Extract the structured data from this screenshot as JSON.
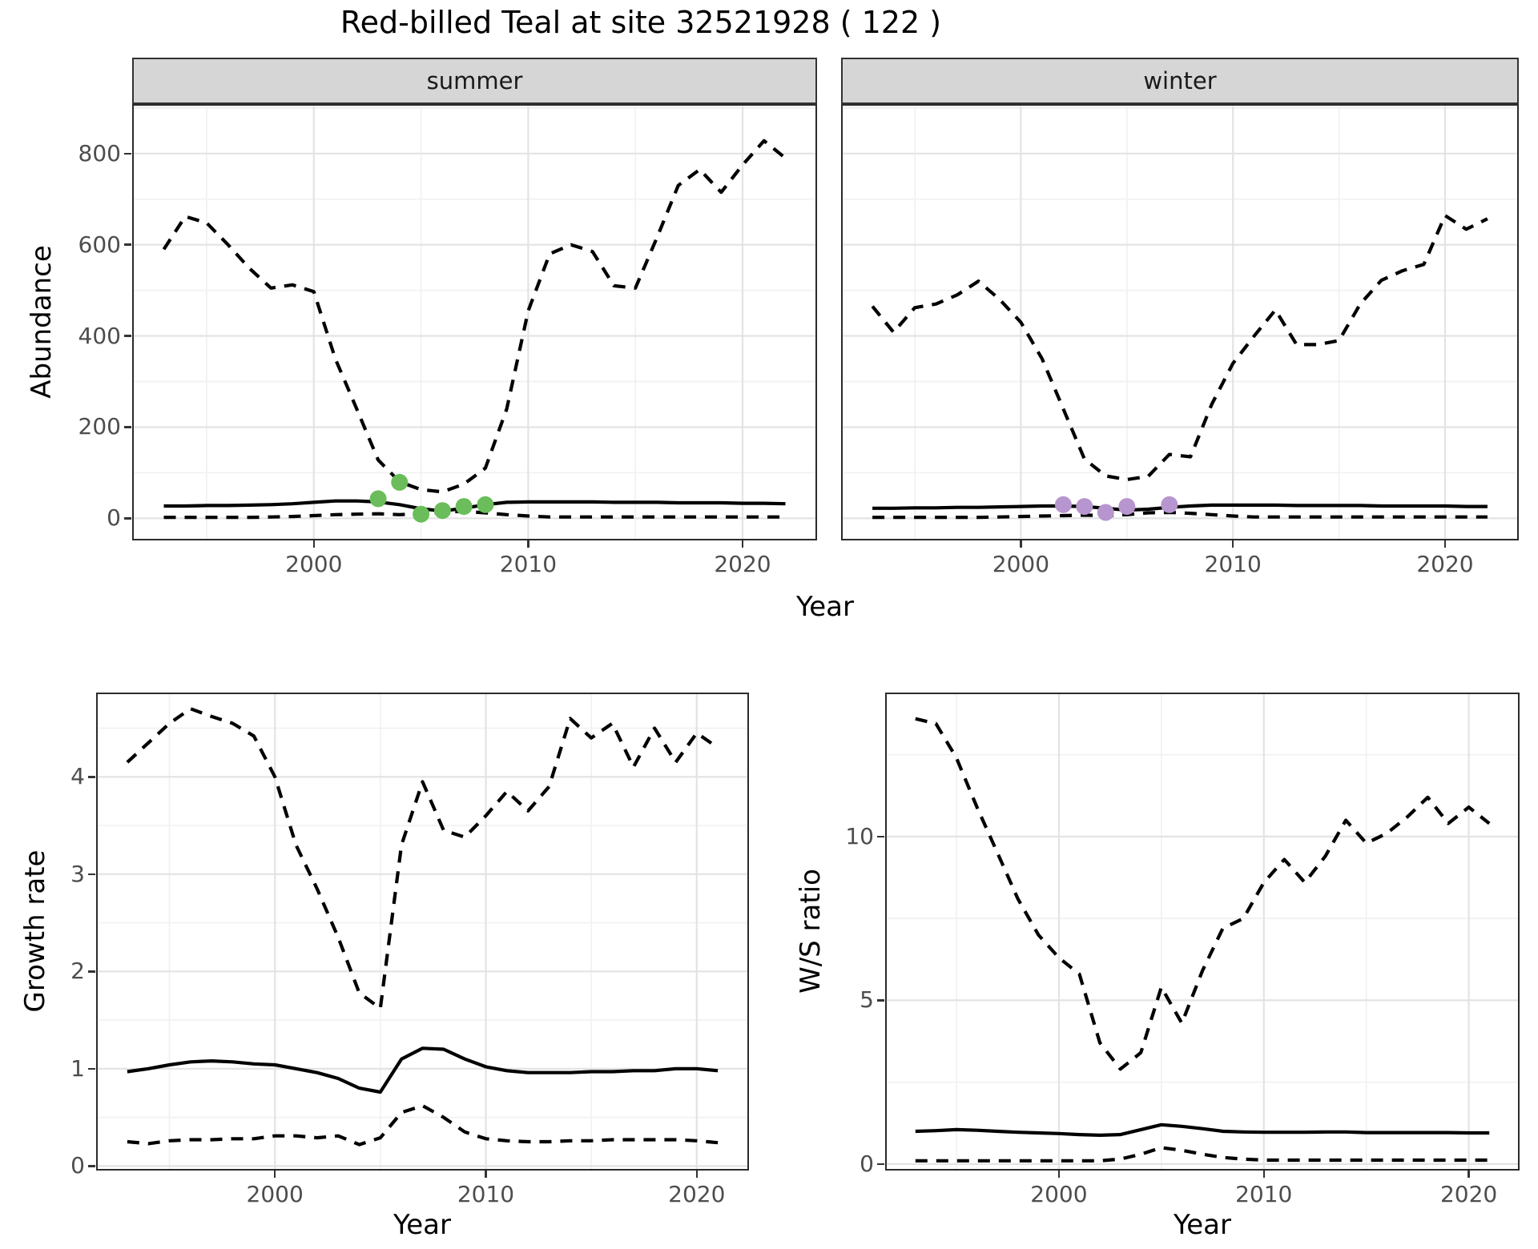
{
  "title": "Red-billed Teal at site 32521928 ( 122 )",
  "labels": {
    "year": "Year"
  },
  "colors": {
    "summer_point": "#6abd5a",
    "winter_point": "#b795cf",
    "line": "#000000",
    "grid_major": "#e3e3e3",
    "grid_minor": "#f1f1f1",
    "panel_border": "#2b2b2b",
    "strip_bg": "#d6d6d6",
    "axis_text": "#4d4d4d"
  },
  "chart_data": {
    "type": "line",
    "title": "Red-billed Teal at site 32521928 ( 122 )",
    "panels": [
      {
        "id": "abundance-summer",
        "facet": "summer",
        "ylabel": "Abundance",
        "xlabel": "Year",
        "xlim": [
          1991.6,
          2023.4
        ],
        "ylim": [
          -45,
          905
        ],
        "x_ticks": [
          2000,
          2010,
          2020
        ],
        "x_minor": [
          1995,
          2005,
          2015
        ],
        "y_ticks": [
          0,
          200,
          400,
          600,
          800
        ],
        "y_minor": [
          100,
          300,
          500,
          700,
          900
        ],
        "x": [
          1993,
          1994,
          1995,
          1996,
          1997,
          1998,
          1999,
          2000,
          2001,
          2002,
          2003,
          2004,
          2005,
          2006,
          2007,
          2008,
          2009,
          2010,
          2011,
          2012,
          2013,
          2014,
          2015,
          2016,
          2017,
          2018,
          2019,
          2020,
          2021,
          2022
        ],
        "series": [
          {
            "name": "upper_ci",
            "style": "dashed",
            "values": [
              590,
              662,
              648,
              600,
              548,
              505,
              512,
              497,
              350,
              240,
              128,
              80,
              63,
              58,
              75,
              110,
              240,
              455,
              580,
              600,
              585,
              510,
              505,
              615,
              730,
              765,
              715,
              775,
              828,
              790
            ]
          },
          {
            "name": "median",
            "style": "solid",
            "values": [
              27,
              27,
              28,
              28,
              29,
              30,
              32,
              35,
              38,
              38,
              36,
              30,
              21,
              16,
              22,
              30,
              35,
              36,
              36,
              36,
              36,
              35,
              35,
              35,
              34,
              34,
              34,
              33,
              33,
              32
            ]
          },
          {
            "name": "lower_ci",
            "style": "dashed",
            "values": [
              2,
              2,
              2,
              2,
              2,
              3,
              4,
              6,
              8,
              9,
              10,
              8,
              10,
              14,
              15,
              12,
              8,
              5,
              3,
              3,
              3,
              3,
              3,
              3,
              3,
              3,
              3,
              3,
              3,
              3
            ]
          }
        ],
        "points": {
          "name": "observed-counts-summer",
          "color_key": "summer_point",
          "x": [
            2003,
            2004,
            2005,
            2006,
            2007,
            2008
          ],
          "y": [
            43,
            79,
            9,
            17,
            26,
            30
          ]
        }
      },
      {
        "id": "abundance-winter",
        "facet": "winter",
        "ylabel": "Abundance",
        "xlabel": "Year",
        "xlim": [
          1991.6,
          2023.4
        ],
        "ylim": [
          -45,
          905
        ],
        "x_ticks": [
          2000,
          2010,
          2020
        ],
        "x_minor": [
          1995,
          2005,
          2015
        ],
        "y_ticks": [
          0,
          200,
          400,
          600,
          800
        ],
        "y_minor": [
          100,
          300,
          500,
          700,
          900
        ],
        "x": [
          1993,
          1994,
          1995,
          1996,
          1997,
          1998,
          1999,
          2000,
          2001,
          2002,
          2003,
          2004,
          2005,
          2006,
          2007,
          2008,
          2009,
          2010,
          2011,
          2012,
          2013,
          2014,
          2015,
          2016,
          2017,
          2018,
          2019,
          2020,
          2021,
          2022
        ],
        "series": [
          {
            "name": "upper_ci",
            "style": "dashed",
            "values": [
              465,
              408,
              462,
              470,
              490,
              520,
              480,
              430,
              350,
              240,
              130,
              93,
              85,
              92,
              140,
              135,
              250,
              340,
              400,
              457,
              381,
              381,
              390,
              470,
              522,
              543,
              557,
              664,
              634,
              657
            ]
          },
          {
            "name": "median",
            "style": "solid",
            "values": [
              22,
              22,
              23,
              23,
              24,
              24,
              25,
              26,
              27,
              27,
              26,
              22,
              18,
              20,
              24,
              27,
              29,
              29,
              29,
              29,
              28,
              28,
              28,
              28,
              27,
              27,
              27,
              27,
              26,
              26
            ]
          },
          {
            "name": "lower_ci",
            "style": "dashed",
            "values": [
              2,
              2,
              2,
              2,
              2,
              2,
              3,
              4,
              5,
              6,
              7,
              6,
              8,
              12,
              13,
              11,
              8,
              5,
              3,
              3,
              3,
              3,
              3,
              3,
              3,
              3,
              3,
              3,
              3,
              3
            ]
          }
        ],
        "points": {
          "name": "observed-counts-winter",
          "color_key": "winter_point",
          "x": [
            2002,
            2003,
            2004,
            2005,
            2007
          ],
          "y": [
            30,
            26,
            13,
            26,
            30
          ]
        }
      },
      {
        "id": "growth-rate",
        "facet": null,
        "ylabel": "Growth rate",
        "xlabel": "Year",
        "xlim": [
          1991.6,
          2022.4
        ],
        "ylim": [
          -0.03,
          4.85
        ],
        "x_ticks": [
          2000,
          2010,
          2020
        ],
        "x_minor": [
          1995,
          2005,
          2015
        ],
        "y_ticks": [
          0,
          1,
          2,
          3,
          4
        ],
        "y_minor": [
          0.5,
          1.5,
          2.5,
          3.5,
          4.5
        ],
        "x": [
          1993,
          1994,
          1995,
          1996,
          1997,
          1998,
          1999,
          2000,
          2001,
          2002,
          2003,
          2004,
          2005,
          2006,
          2007,
          2008,
          2009,
          2010,
          2011,
          2012,
          2013,
          2014,
          2015,
          2016,
          2017,
          2018,
          2019,
          2020,
          2021
        ],
        "series": [
          {
            "name": "upper_ci",
            "style": "dashed",
            "values": [
              4.15,
              4.35,
              4.55,
              4.7,
              4.62,
              4.55,
              4.42,
              4.0,
              3.3,
              2.85,
              2.35,
              1.78,
              1.62,
              3.3,
              3.95,
              3.45,
              3.38,
              3.6,
              3.85,
              3.65,
              3.9,
              4.6,
              4.4,
              4.55,
              4.1,
              4.5,
              4.15,
              4.45,
              4.3
            ]
          },
          {
            "name": "median",
            "style": "solid",
            "values": [
              0.97,
              1.0,
              1.04,
              1.07,
              1.08,
              1.07,
              1.05,
              1.04,
              1.0,
              0.96,
              0.9,
              0.8,
              0.76,
              1.1,
              1.21,
              1.2,
              1.1,
              1.02,
              0.98,
              0.96,
              0.96,
              0.96,
              0.97,
              0.97,
              0.98,
              0.98,
              1.0,
              1.0,
              0.98
            ]
          },
          {
            "name": "lower_ci",
            "style": "dashed",
            "values": [
              0.25,
              0.23,
              0.26,
              0.27,
              0.27,
              0.28,
              0.28,
              0.31,
              0.31,
              0.29,
              0.31,
              0.22,
              0.29,
              0.55,
              0.62,
              0.5,
              0.35,
              0.28,
              0.26,
              0.25,
              0.25,
              0.26,
              0.26,
              0.27,
              0.27,
              0.27,
              0.27,
              0.26,
              0.24
            ]
          }
        ],
        "points": null
      },
      {
        "id": "ws-ratio",
        "facet": null,
        "ylabel": "W/S ratio",
        "xlabel": "Year",
        "xlim": [
          1991.6,
          2022.4
        ],
        "ylim": [
          -0.15,
          14.35
        ],
        "x_ticks": [
          2000,
          2010,
          2020
        ],
        "x_minor": [
          1995,
          2005,
          2015
        ],
        "y_ticks": [
          0,
          5,
          10
        ],
        "y_minor": [
          2.5,
          7.5,
          12.5
        ],
        "x": [
          1993,
          1994,
          1995,
          1996,
          1997,
          1998,
          1999,
          2000,
          2001,
          2002,
          2003,
          2004,
          2005,
          2006,
          2007,
          2008,
          2009,
          2010,
          2011,
          2012,
          2013,
          2014,
          2015,
          2016,
          2017,
          2018,
          2019,
          2020,
          2021
        ],
        "series": [
          {
            "name": "upper_ci",
            "style": "dashed",
            "values": [
              13.6,
              13.45,
              12.4,
              10.9,
              9.5,
              8.1,
              7.0,
              6.3,
              5.8,
              3.7,
              2.9,
              3.4,
              5.4,
              4.3,
              5.9,
              7.2,
              7.5,
              8.6,
              9.3,
              8.6,
              9.4,
              10.5,
              9.8,
              10.1,
              10.6,
              11.2,
              10.4,
              10.9,
              10.4
            ]
          },
          {
            "name": "median",
            "style": "solid",
            "values": [
              1.0,
              1.02,
              1.05,
              1.03,
              1.0,
              0.97,
              0.95,
              0.93,
              0.9,
              0.88,
              0.9,
              1.05,
              1.2,
              1.15,
              1.08,
              1.0,
              0.98,
              0.97,
              0.97,
              0.97,
              0.98,
              0.98,
              0.96,
              0.96,
              0.96,
              0.96,
              0.96,
              0.95,
              0.95
            ]
          },
          {
            "name": "lower_ci",
            "style": "dashed",
            "values": [
              0.1,
              0.1,
              0.1,
              0.1,
              0.1,
              0.1,
              0.1,
              0.1,
              0.1,
              0.1,
              0.15,
              0.3,
              0.5,
              0.42,
              0.3,
              0.2,
              0.15,
              0.12,
              0.12,
              0.12,
              0.12,
              0.12,
              0.12,
              0.12,
              0.12,
              0.12,
              0.12,
              0.12,
              0.12
            ]
          }
        ],
        "points": null
      }
    ]
  }
}
